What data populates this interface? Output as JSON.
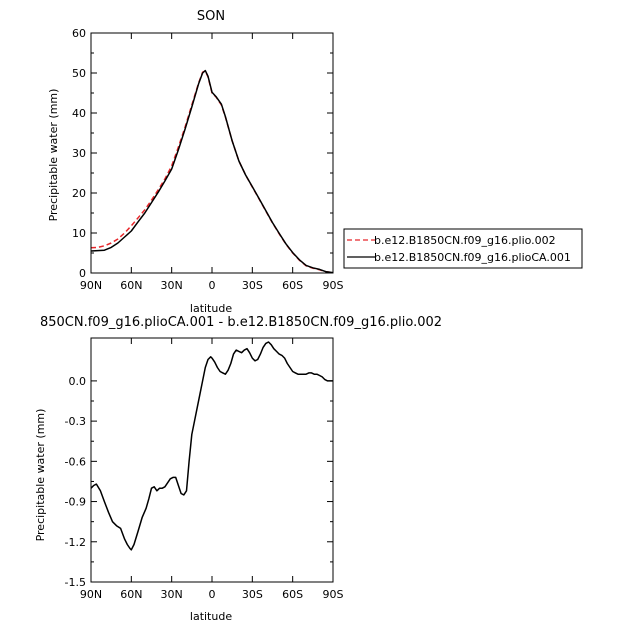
{
  "chart_data": [
    {
      "type": "line",
      "title": "SON",
      "xlabel": "latitude",
      "ylabel": "Precipitable water (mm)",
      "xlim": [
        90,
        -90
      ],
      "ylim": [
        0,
        60
      ],
      "x_ticks": [
        90,
        60,
        30,
        0,
        -30,
        -60,
        -90
      ],
      "x_tick_labels": [
        "90N",
        "60N",
        "30N",
        "0",
        "30S",
        "60S",
        "90S"
      ],
      "y_ticks": [
        0,
        10,
        20,
        30,
        40,
        50,
        60
      ],
      "y_tick_labels": [
        "0",
        "10",
        "20",
        "30",
        "40",
        "50",
        "60"
      ],
      "legend_position": "right",
      "series": [
        {
          "name": "b.e12.B1850CN.f09_g16.plio.002",
          "color": "#e8262a",
          "style": "dashed",
          "x": [
            90,
            85,
            80,
            75,
            70,
            65,
            60,
            55,
            50,
            45,
            40,
            35,
            30,
            25,
            20,
            15,
            10,
            7,
            5,
            3,
            0,
            -3,
            -7,
            -10,
            -15,
            -20,
            -25,
            -30,
            -35,
            -40,
            -45,
            -50,
            -55,
            -60,
            -65,
            -70,
            -75,
            -80,
            -85,
            -90
          ],
          "y": [
            6.3,
            6.4,
            6.8,
            7.5,
            8.5,
            10.0,
            11.8,
            13.8,
            15.8,
            18.2,
            20.8,
            23.5,
            26.8,
            31.5,
            36.5,
            42.0,
            47.5,
            50.2,
            50.5,
            49.0,
            45.0,
            44.0,
            42.0,
            39.0,
            33.0,
            28.0,
            24.5,
            21.5,
            18.5,
            15.5,
            12.5,
            9.8,
            7.2,
            5.0,
            3.2,
            1.8,
            1.2,
            0.8,
            0.3,
            0.1
          ]
        },
        {
          "name": "b.e12.B1850CN.f09_g16.plioCA.001",
          "color": "#000000",
          "style": "solid",
          "x": [
            90,
            85,
            80,
            75,
            70,
            65,
            60,
            55,
            50,
            45,
            40,
            35,
            30,
            25,
            20,
            15,
            10,
            7,
            5,
            3,
            0,
            -3,
            -7,
            -10,
            -15,
            -20,
            -25,
            -30,
            -35,
            -40,
            -45,
            -50,
            -55,
            -60,
            -65,
            -70,
            -75,
            -80,
            -85,
            -90
          ],
          "y": [
            5.5,
            5.6,
            5.7,
            6.4,
            7.5,
            9.0,
            10.5,
            12.8,
            15.0,
            17.6,
            20.2,
            23.0,
            26.0,
            30.8,
            36.0,
            41.5,
            47.3,
            50.0,
            50.6,
            49.2,
            45.2,
            44.1,
            42.2,
            39.1,
            33.0,
            28.0,
            24.5,
            21.6,
            18.6,
            15.6,
            12.6,
            9.9,
            7.3,
            5.1,
            3.3,
            1.9,
            1.3,
            0.9,
            0.3,
            0.1
          ]
        }
      ]
    },
    {
      "type": "line",
      "title": "850CN.f09_g16.plioCA.001 - b.e12.B1850CN.f09_g16.plio.002",
      "xlabel": "latitude",
      "ylabel": "Precipitable water (mm)",
      "xlim": [
        90,
        -90
      ],
      "ylim": [
        -1.5,
        0.32
      ],
      "x_ticks": [
        90,
        60,
        30,
        0,
        -30,
        -60,
        -90
      ],
      "x_tick_labels": [
        "90N",
        "60N",
        "30N",
        "0",
        "30S",
        "60S",
        "90S"
      ],
      "y_ticks": [
        -1.5,
        -1.2,
        -0.9,
        -0.6,
        -0.3,
        0.0
      ],
      "y_tick_labels": [
        "-1.5",
        "-1.2",
        "-0.9",
        "-0.6",
        "-0.3",
        "0.0"
      ],
      "series": [
        {
          "color": "#000000",
          "style": "solid",
          "x": [
            90,
            88,
            86,
            83,
            80,
            77,
            74,
            71,
            68,
            65,
            63,
            61,
            60,
            58,
            55,
            52,
            49,
            47,
            45,
            43,
            41,
            39,
            37,
            35,
            33,
            31,
            29,
            27,
            25,
            23,
            21,
            19,
            17,
            15,
            13,
            11,
            9,
            7,
            5,
            3,
            1,
            0,
            -2,
            -4,
            -6,
            -8,
            -10,
            -12,
            -14,
            -16,
            -18,
            -20,
            -22,
            -24,
            -26,
            -28,
            -30,
            -32,
            -34,
            -36,
            -38,
            -40,
            -42,
            -44,
            -46,
            -48,
            -50,
            -52,
            -54,
            -56,
            -58,
            -60,
            -62,
            -64,
            -66,
            -68,
            -70,
            -72,
            -74,
            -76,
            -78,
            -80,
            -82,
            -84,
            -86,
            -88,
            -90
          ],
          "y": [
            -0.8,
            -0.78,
            -0.77,
            -0.82,
            -0.9,
            -0.98,
            -1.05,
            -1.08,
            -1.1,
            -1.18,
            -1.22,
            -1.25,
            -1.26,
            -1.22,
            -1.12,
            -1.02,
            -0.95,
            -0.88,
            -0.8,
            -0.79,
            -0.82,
            -0.8,
            -0.8,
            -0.79,
            -0.76,
            -0.73,
            -0.72,
            -0.72,
            -0.78,
            -0.84,
            -0.85,
            -0.82,
            -0.6,
            -0.4,
            -0.3,
            -0.2,
            -0.1,
            0.0,
            0.1,
            0.16,
            0.18,
            0.17,
            0.14,
            0.1,
            0.07,
            0.06,
            0.05,
            0.08,
            0.13,
            0.2,
            0.23,
            0.22,
            0.21,
            0.23,
            0.24,
            0.21,
            0.17,
            0.15,
            0.16,
            0.2,
            0.25,
            0.28,
            0.29,
            0.27,
            0.24,
            0.22,
            0.2,
            0.19,
            0.17,
            0.13,
            0.1,
            0.07,
            0.06,
            0.05,
            0.05,
            0.05,
            0.05,
            0.06,
            0.06,
            0.05,
            0.05,
            0.04,
            0.03,
            0.01,
            0.0,
            0.0,
            0.0
          ]
        }
      ]
    }
  ]
}
